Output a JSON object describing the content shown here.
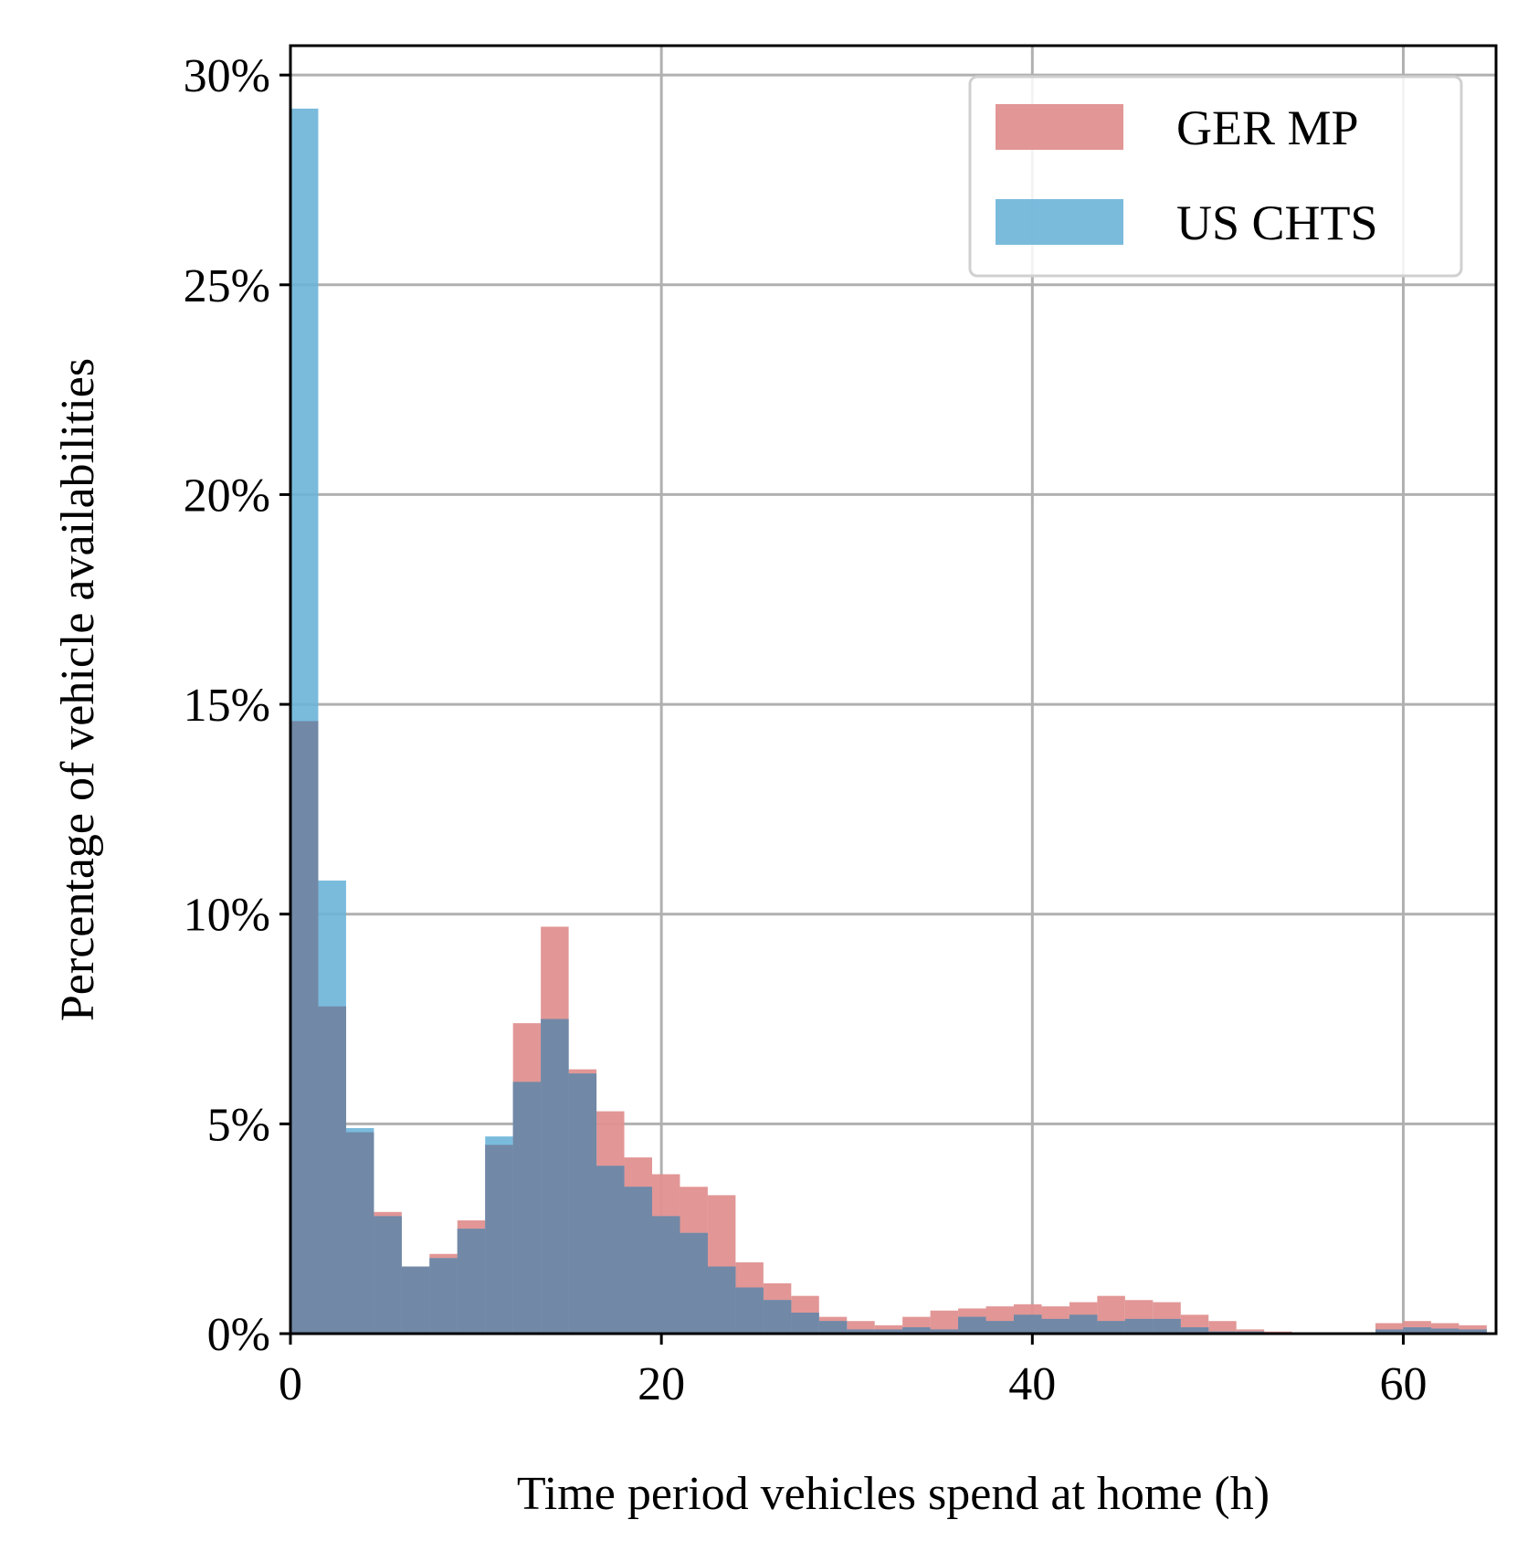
{
  "chart_data": {
    "type": "bar",
    "title": "",
    "xlabel": "Time period vehicles spend at home (h)",
    "ylabel": "Percentage of vehicle availabilities",
    "xlim": [
      0,
      65
    ],
    "ylim": [
      0,
      30.7
    ],
    "xticks": [
      0,
      20,
      40,
      60
    ],
    "xtick_labels": [
      "0",
      "20",
      "40",
      "60"
    ],
    "yticks": [
      0,
      5,
      10,
      15,
      20,
      25,
      30
    ],
    "ytick_labels": [
      "0%",
      "5%",
      "10%",
      "15%",
      "20%",
      "25%",
      "30%"
    ],
    "grid": true,
    "legend_position": "top-right",
    "bin_width": 1.5,
    "bin_start": 0,
    "series": [
      {
        "name": "GER MP",
        "color": "#e09090",
        "alpha": 0.95,
        "values": [
          14.6,
          7.8,
          4.8,
          2.9,
          1.6,
          1.9,
          2.7,
          4.5,
          7.4,
          9.7,
          6.3,
          5.3,
          4.2,
          3.8,
          3.5,
          3.3,
          1.7,
          1.2,
          0.9,
          0.4,
          0.3,
          0.2,
          0.4,
          0.55,
          0.6,
          0.65,
          0.7,
          0.65,
          0.75,
          0.9,
          0.8,
          0.75,
          0.45,
          0.3,
          0.1,
          0.05,
          0.02,
          0.02,
          0.02,
          0.25,
          0.3,
          0.25,
          0.2
        ]
      },
      {
        "name": "US CHTS",
        "color": "#6cb4d8",
        "alpha": 0.9,
        "values": [
          29.2,
          10.8,
          4.9,
          2.8,
          1.6,
          1.8,
          2.5,
          4.7,
          6.0,
          7.5,
          6.2,
          4.0,
          3.5,
          2.8,
          2.4,
          1.6,
          1.1,
          0.8,
          0.5,
          0.3,
          0.1,
          0.1,
          0.15,
          0.1,
          0.4,
          0.3,
          0.45,
          0.35,
          0.45,
          0.3,
          0.35,
          0.35,
          0.15,
          0.05,
          0.05,
          0.02,
          0.02,
          0.02,
          0.02,
          0.1,
          0.15,
          0.12,
          0.1
        ]
      }
    ]
  }
}
